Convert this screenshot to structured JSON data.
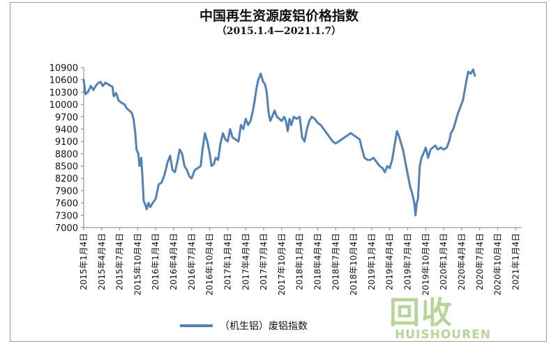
{
  "chart_data": {
    "type": "line",
    "title": "中国再生资源废铝价格指数",
    "subtitle": "（2015.1.4—2021.1.7）",
    "ylim": [
      7000,
      10900
    ],
    "yticks": [
      7000,
      7300,
      7600,
      7900,
      8200,
      8500,
      8800,
      9100,
      9400,
      9700,
      10000,
      10300,
      10600,
      10900
    ],
    "x_tick_labels": [
      "2015年1月4日",
      "2015年4月4日",
      "2015年7月4日",
      "2015年10月4日",
      "2016年1月4日",
      "2016年4月4日",
      "2016年7月4日",
      "2016年10月4日",
      "2017年1月4日",
      "2017年4月4日",
      "2017年7月4日",
      "2017年10月4日",
      "2018年1月4日",
      "2018年4月4日",
      "2018年7月4日",
      "2018年10月4日",
      "2019年1月4日",
      "2019年4月4日",
      "2019年7月4日",
      "2019年10月4日",
      "2020年1月4日",
      "2020年4月4日",
      "2020年7月4日",
      "2020年10月4日",
      "2021年1月4日"
    ],
    "x_range_months": [
      0,
      73
    ],
    "grid": false,
    "legend_position": "bottom",
    "color": "#4f81bd",
    "series": [
      {
        "name": "（机生铝）废铝指数",
        "points": [
          [
            0,
            10600
          ],
          [
            0.3,
            10250
          ],
          [
            0.7,
            10300
          ],
          [
            1.2,
            10450
          ],
          [
            1.6,
            10350
          ],
          [
            2.0,
            10450
          ],
          [
            2.4,
            10520
          ],
          [
            2.8,
            10550
          ],
          [
            3.2,
            10450
          ],
          [
            3.6,
            10530
          ],
          [
            4.2,
            10480
          ],
          [
            4.8,
            10430
          ],
          [
            5.0,
            10200
          ],
          [
            5.4,
            10280
          ],
          [
            5.8,
            10100
          ],
          [
            6.2,
            10050
          ],
          [
            6.8,
            10000
          ],
          [
            7.2,
            9900
          ],
          [
            7.6,
            9850
          ],
          [
            8.0,
            9800
          ],
          [
            8.3,
            9650
          ],
          [
            8.6,
            9300
          ],
          [
            8.8,
            8900
          ],
          [
            9.1,
            8800
          ],
          [
            9.3,
            8500
          ],
          [
            9.6,
            8700
          ],
          [
            9.8,
            8200
          ],
          [
            10.0,
            7650
          ],
          [
            10.3,
            7550
          ],
          [
            10.5,
            7450
          ],
          [
            10.8,
            7600
          ],
          [
            11.1,
            7500
          ],
          [
            11.5,
            7600
          ],
          [
            12.0,
            7700
          ],
          [
            12.5,
            8050
          ],
          [
            13.0,
            8100
          ],
          [
            13.5,
            8300
          ],
          [
            14.0,
            8600
          ],
          [
            14.4,
            8750
          ],
          [
            14.8,
            8400
          ],
          [
            15.2,
            8350
          ],
          [
            15.6,
            8600
          ],
          [
            16.0,
            8900
          ],
          [
            16.4,
            8800
          ],
          [
            16.8,
            8500
          ],
          [
            17.2,
            8400
          ],
          [
            17.6,
            8250
          ],
          [
            18.0,
            8200
          ],
          [
            18.5,
            8400
          ],
          [
            19.0,
            8450
          ],
          [
            19.5,
            8500
          ],
          [
            19.8,
            8900
          ],
          [
            20.2,
            9300
          ],
          [
            20.6,
            9100
          ],
          [
            21.0,
            8800
          ],
          [
            21.3,
            8500
          ],
          [
            21.7,
            8550
          ],
          [
            22.0,
            8700
          ],
          [
            22.4,
            8650
          ],
          [
            22.8,
            9050
          ],
          [
            23.2,
            9300
          ],
          [
            23.6,
            9150
          ],
          [
            24.0,
            9100
          ],
          [
            24.4,
            9400
          ],
          [
            24.8,
            9200
          ],
          [
            25.3,
            9150
          ],
          [
            25.8,
            9100
          ],
          [
            26.2,
            9500
          ],
          [
            26.6,
            9400
          ],
          [
            27.0,
            9650
          ],
          [
            27.4,
            9500
          ],
          [
            27.8,
            9600
          ],
          [
            28.2,
            9850
          ],
          [
            28.5,
            10100
          ],
          [
            28.8,
            10400
          ],
          [
            29.1,
            10600
          ],
          [
            29.5,
            10750
          ],
          [
            29.9,
            10550
          ],
          [
            30.2,
            10500
          ],
          [
            30.5,
            10300
          ],
          [
            30.8,
            9800
          ],
          [
            31.1,
            9600
          ],
          [
            31.4,
            9700
          ],
          [
            31.8,
            9850
          ],
          [
            32.2,
            9700
          ],
          [
            32.6,
            9650
          ],
          [
            33.0,
            9600
          ],
          [
            33.4,
            9700
          ],
          [
            33.7,
            9600
          ],
          [
            34.0,
            9350
          ],
          [
            34.3,
            9650
          ],
          [
            34.6,
            9500
          ],
          [
            35.0,
            9700
          ],
          [
            35.5,
            9650
          ],
          [
            36.0,
            9700
          ],
          [
            36.4,
            9200
          ],
          [
            36.8,
            9100
          ],
          [
            37.2,
            9400
          ],
          [
            37.6,
            9600
          ],
          [
            38.0,
            9700
          ],
          [
            38.5,
            9650
          ],
          [
            39.0,
            9550
          ],
          [
            39.5,
            9500
          ],
          [
            40.0,
            9400
          ],
          [
            40.5,
            9300
          ],
          [
            41.0,
            9200
          ],
          [
            41.5,
            9100
          ],
          [
            42.0,
            9050
          ],
          [
            42.5,
            9100
          ],
          [
            43.0,
            9150
          ],
          [
            43.5,
            9200
          ],
          [
            44.0,
            9250
          ],
          [
            44.5,
            9300
          ],
          [
            45.0,
            9250
          ],
          [
            45.5,
            9200
          ],
          [
            46.0,
            9150
          ],
          [
            46.4,
            8900
          ],
          [
            46.8,
            8700
          ],
          [
            47.3,
            8650
          ],
          [
            47.8,
            8650
          ],
          [
            48.3,
            8700
          ],
          [
            48.8,
            8600
          ],
          [
            49.3,
            8500
          ],
          [
            49.8,
            8450
          ],
          [
            50.2,
            8350
          ],
          [
            50.6,
            8500
          ],
          [
            51.0,
            8450
          ],
          [
            51.4,
            8650
          ],
          [
            51.8,
            9000
          ],
          [
            52.2,
            9350
          ],
          [
            52.5,
            9250
          ],
          [
            52.8,
            9100
          ],
          [
            53.2,
            8900
          ],
          [
            53.6,
            8600
          ],
          [
            54.0,
            8300
          ],
          [
            54.4,
            8000
          ],
          [
            54.8,
            7800
          ],
          [
            55.1,
            7600
          ],
          [
            55.3,
            7300
          ],
          [
            55.5,
            7600
          ],
          [
            55.7,
            7700
          ],
          [
            56.0,
            8500
          ],
          [
            56.3,
            8700
          ],
          [
            56.6,
            8800
          ],
          [
            57.0,
            8950
          ],
          [
            57.4,
            8700
          ],
          [
            57.8,
            8900
          ],
          [
            58.2,
            8950
          ],
          [
            58.6,
            9000
          ],
          [
            59.0,
            8900
          ],
          [
            59.5,
            8950
          ],
          [
            60.0,
            8900
          ],
          [
            60.5,
            8950
          ],
          [
            60.9,
            9100
          ],
          [
            61.2,
            9300
          ],
          [
            61.6,
            9400
          ],
          [
            62.0,
            9600
          ],
          [
            62.4,
            9800
          ],
          [
            62.8,
            9950
          ],
          [
            63.2,
            10100
          ],
          [
            63.5,
            10350
          ],
          [
            63.8,
            10600
          ],
          [
            64.1,
            10800
          ],
          [
            64.5,
            10750
          ],
          [
            64.9,
            10850
          ],
          [
            65.2,
            10700
          ]
        ]
      }
    ]
  },
  "legend": {
    "label": "（机生铝）废铝指数"
  },
  "watermark": {
    "text_cn": "回收",
    "text_en": "HUISHOUREN"
  }
}
